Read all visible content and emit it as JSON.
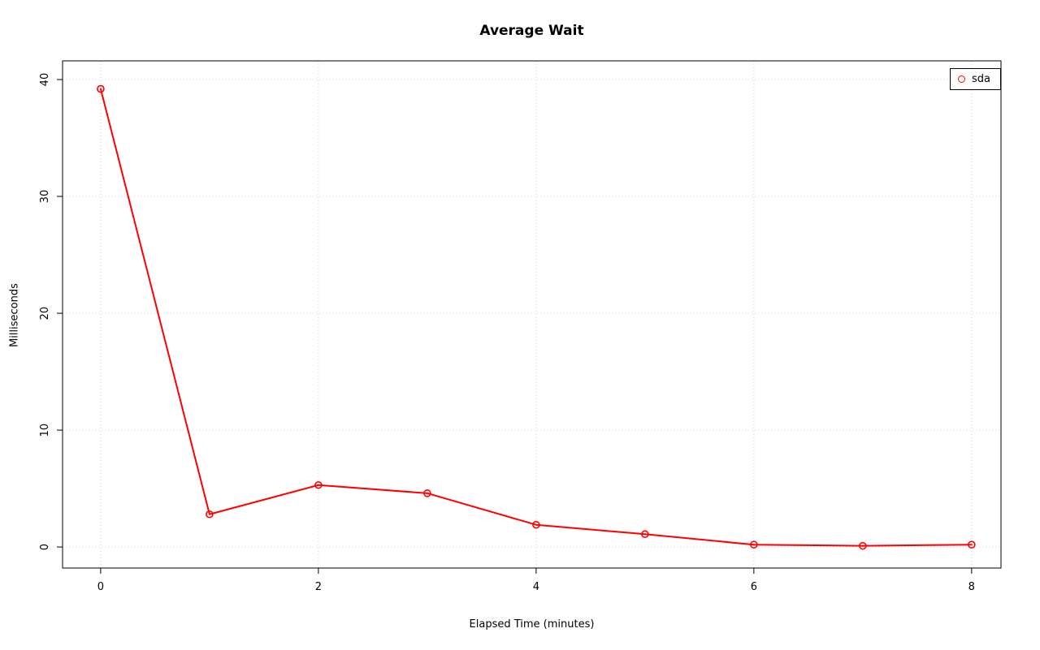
{
  "chart_data": {
    "type": "line",
    "title": "Average Wait",
    "xlabel": "Elapsed Time (minutes)",
    "ylabel": "Milliseconds",
    "x": [
      0,
      1,
      2,
      3,
      4,
      5,
      6,
      7,
      8
    ],
    "series": [
      {
        "name": "sda",
        "color": "#ff0000",
        "values": [
          39.2,
          2.8,
          5.3,
          4.6,
          1.9,
          1.1,
          0.2,
          0.1,
          0.2
        ]
      }
    ],
    "xticks": [
      0,
      2,
      4,
      6,
      8
    ],
    "yticks": [
      0,
      10,
      20,
      30,
      40
    ],
    "xlim": [
      -0.35,
      8.27
    ],
    "ylim": [
      -1.8,
      41.6
    ],
    "grid": true,
    "grid_color": "#d4d4d4",
    "axis_color": "#000000",
    "legend_position": "topright",
    "marker_style": "open-circle"
  }
}
